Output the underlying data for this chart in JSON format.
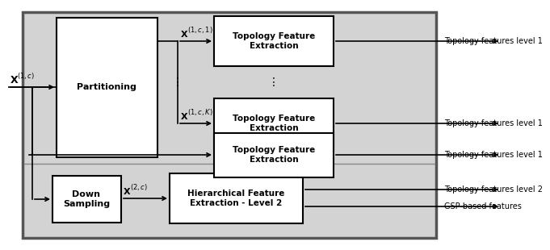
{
  "fig_width": 6.28,
  "fig_height": 2.9,
  "outer_fill": "#d3d3d3",
  "outer_edge": "#666666",
  "inner_fill": "#e8e8e8",
  "box_fill": "#ffffff",
  "box_edge": "#000000",
  "partitioning_label": "Partitioning",
  "tfe1_label": "Topology Feature\nExtraction",
  "tfe2_label": "Topology Feature\nExtraction",
  "tfe3_label": "Topology Feature\nExtraction",
  "ds_label": "Down\nSampling",
  "hfe_label": "Hierarchical Feature\nExtraction - Level 2",
  "out1": "Topology features level 1",
  "out2": "Topology features level 1",
  "out3": "Topology features level 1",
  "out4": "Topology features level 2",
  "out5": "GSP-based features"
}
